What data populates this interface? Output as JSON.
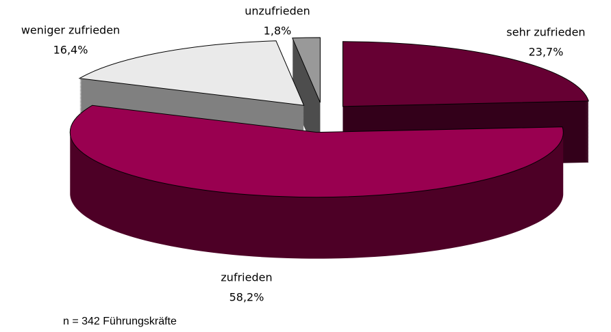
{
  "chart_data": {
    "type": "pie",
    "categories": [
      "sehr zufrieden",
      "zufrieden",
      "weniger zufrieden",
      "unzufrieden"
    ],
    "values": [
      23.7,
      58.2,
      16.4,
      1.8
    ],
    "value_labels": [
      "23,7%",
      "58,2%",
      "16,4%",
      "1,8%"
    ],
    "colors": [
      "#660033",
      "#990050",
      "#eaeaea",
      "#999999"
    ],
    "side_colors": [
      "#33001a",
      "#4d0026",
      "#808080",
      "#4d4d4d"
    ],
    "annotation": "n = 342 Führungskräfte"
  }
}
